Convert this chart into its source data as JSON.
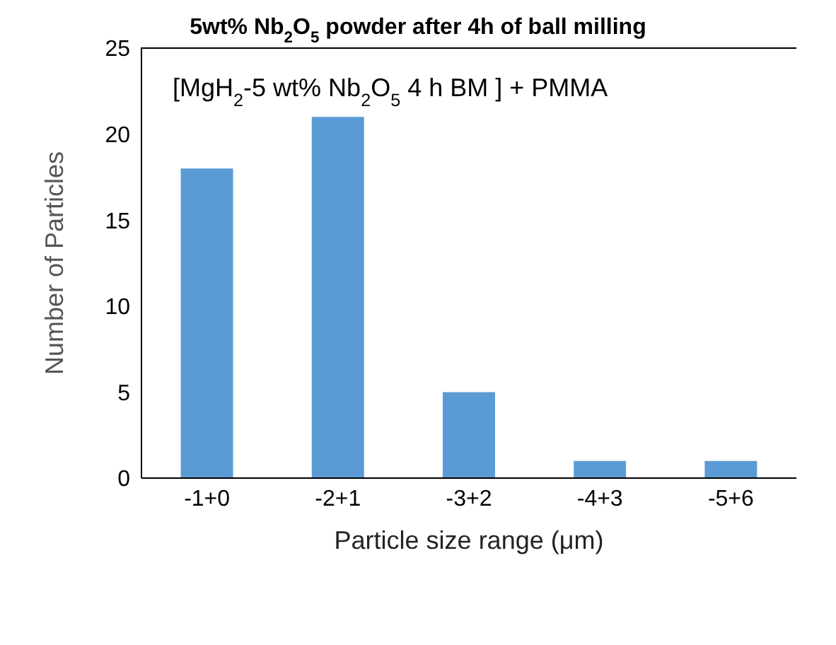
{
  "chart_data": {
    "type": "bar",
    "title": "5wt% Nb$_{2}$O$_{5}$ powder after 4h of ball milling",
    "annotations": [
      "[MgH$_{2}$-5 wt% Nb$_{2}$O$_{5}$  4 h BM ] + PMMA"
    ],
    "xlabel": "Particle size range (μm)",
    "ylabel": "Number of Particles",
    "categories": [
      "-1+0",
      "-2+1",
      "-3+2",
      "-4+3",
      "-5+6"
    ],
    "values": [
      18,
      21,
      5,
      1,
      1
    ],
    "color": "#5b9bd5",
    "ylim": [
      0,
      25
    ],
    "yticks": [
      0,
      5,
      10,
      15,
      20,
      25
    ],
    "grid": false
  }
}
